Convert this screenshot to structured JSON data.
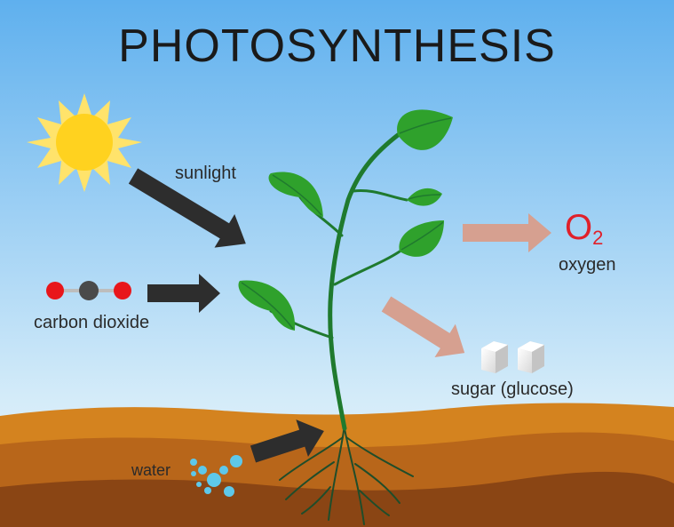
{
  "title": "PHOTOSYNTHESIS",
  "labels": {
    "sunlight": "sunlight",
    "carbon_dioxide": "carbon dioxide",
    "oxygen_symbol": "O",
    "oxygen_subscript": "2",
    "oxygen": "oxygen",
    "sugar": "sugar (glucose)",
    "water": "water"
  },
  "colors": {
    "sky_top": "#5fb0ee",
    "sky_bottom": "#e3f2fb",
    "soil_light": "#d4831f",
    "soil_mid": "#b8661a",
    "soil_dark": "#8a4514",
    "input_arrow": "#2d2d2d",
    "output_arrow": "#d6a090",
    "leaf": "#2fa12c",
    "stem": "#1f7a2e",
    "oxygen": "#e0202a",
    "water_drop": "#5ec8ea",
    "sun": "#ffd21f"
  },
  "icons": [
    "sun-icon",
    "co2-molecule-icon",
    "sugar-cube-icon",
    "water-drop-icon",
    "plant-icon"
  ]
}
